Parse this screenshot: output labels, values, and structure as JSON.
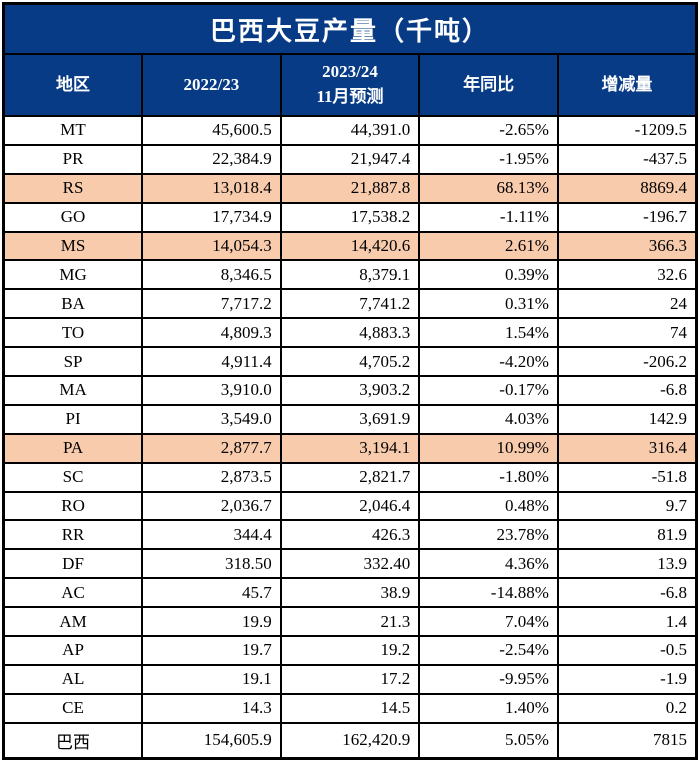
{
  "title": "巴西大豆产量（千吨）",
  "columns": [
    {
      "label": "地区"
    },
    {
      "label": "2022/23"
    },
    {
      "label_line1": "2023/24",
      "label_line2": "11月预测"
    },
    {
      "label": "年同比"
    },
    {
      "label": "增减量"
    }
  ],
  "colors": {
    "header_bg": "#083B85",
    "header_text": "#FFFFFF",
    "highlight_bg": "#F8CBAD",
    "border": "#000000",
    "body_text": "#000000"
  },
  "rows": [
    {
      "cells": [
        "MT",
        "45,600.5",
        "44,391.0",
        "-2.65%",
        "-1209.5"
      ],
      "highlight": false
    },
    {
      "cells": [
        "PR",
        "22,384.9",
        "21,947.4",
        "-1.95%",
        "-437.5"
      ],
      "highlight": false
    },
    {
      "cells": [
        "RS",
        "13,018.4",
        "21,887.8",
        "68.13%",
        "8869.4"
      ],
      "highlight": true
    },
    {
      "cells": [
        "GO",
        "17,734.9",
        "17,538.2",
        "-1.11%",
        "-196.7"
      ],
      "highlight": false
    },
    {
      "cells": [
        "MS",
        "14,054.3",
        "14,420.6",
        "2.61%",
        "366.3"
      ],
      "highlight": true
    },
    {
      "cells": [
        "MG",
        "8,346.5",
        "8,379.1",
        "0.39%",
        "32.6"
      ],
      "highlight": false
    },
    {
      "cells": [
        "BA",
        "7,717.2",
        "7,741.2",
        "0.31%",
        "24"
      ],
      "highlight": false
    },
    {
      "cells": [
        "TO",
        "4,809.3",
        "4,883.3",
        "1.54%",
        "74"
      ],
      "highlight": false
    },
    {
      "cells": [
        "SP",
        "4,911.4",
        "4,705.2",
        "-4.20%",
        "-206.2"
      ],
      "highlight": false
    },
    {
      "cells": [
        "MA",
        "3,910.0",
        "3,903.2",
        "-0.17%",
        "-6.8"
      ],
      "highlight": false
    },
    {
      "cells": [
        "PI",
        "3,549.0",
        "3,691.9",
        "4.03%",
        "142.9"
      ],
      "highlight": false
    },
    {
      "cells": [
        "PA",
        "2,877.7",
        "3,194.1",
        "10.99%",
        "316.4"
      ],
      "highlight": true
    },
    {
      "cells": [
        "SC",
        "2,873.5",
        "2,821.7",
        "-1.80%",
        "-51.8"
      ],
      "highlight": false
    },
    {
      "cells": [
        "RO",
        "2,036.7",
        "2,046.4",
        "0.48%",
        "9.7"
      ],
      "highlight": false
    },
    {
      "cells": [
        "RR",
        "344.4",
        "426.3",
        "23.78%",
        "81.9"
      ],
      "highlight": false
    },
    {
      "cells": [
        "DF",
        "318.50",
        "332.40",
        "4.36%",
        "13.9"
      ],
      "highlight": false
    },
    {
      "cells": [
        "AC",
        "45.7",
        "38.9",
        "-14.88%",
        "-6.8"
      ],
      "highlight": false
    },
    {
      "cells": [
        "AM",
        "19.9",
        "21.3",
        "7.04%",
        "1.4"
      ],
      "highlight": false
    },
    {
      "cells": [
        "AP",
        "19.7",
        "19.2",
        "-2.54%",
        "-0.5"
      ],
      "highlight": false
    },
    {
      "cells": [
        "AL",
        "19.1",
        "17.2",
        "-9.95%",
        "-1.9"
      ],
      "highlight": false
    },
    {
      "cells": [
        "CE",
        "14.3",
        "14.5",
        "1.40%",
        "0.2"
      ],
      "highlight": false
    },
    {
      "cells": [
        "巴西",
        "154,605.9",
        "162,420.9",
        "5.05%",
        "7815"
      ],
      "highlight": false,
      "is_total": true
    }
  ],
  "chart_data": {
    "type": "table",
    "title": "巴西大豆产量（千吨）",
    "columns": [
      "地区",
      "2022/23",
      "2023/24 11月预测",
      "年同比",
      "增减量"
    ],
    "rows": [
      [
        "MT",
        45600.5,
        44391.0,
        "-2.65%",
        -1209.5
      ],
      [
        "PR",
        22384.9,
        21947.4,
        "-1.95%",
        -437.5
      ],
      [
        "RS",
        13018.4,
        21887.8,
        "68.13%",
        8869.4
      ],
      [
        "GO",
        17734.9,
        17538.2,
        "-1.11%",
        -196.7
      ],
      [
        "MS",
        14054.3,
        14420.6,
        "2.61%",
        366.3
      ],
      [
        "MG",
        8346.5,
        8379.1,
        "0.39%",
        32.6
      ],
      [
        "BA",
        7717.2,
        7741.2,
        "0.31%",
        24
      ],
      [
        "TO",
        4809.3,
        4883.3,
        "1.54%",
        74
      ],
      [
        "SP",
        4911.4,
        4705.2,
        "-4.20%",
        -206.2
      ],
      [
        "MA",
        3910.0,
        3903.2,
        "-0.17%",
        -6.8
      ],
      [
        "PI",
        3549.0,
        3691.9,
        "4.03%",
        142.9
      ],
      [
        "PA",
        2877.7,
        3194.1,
        "10.99%",
        316.4
      ],
      [
        "SC",
        2873.5,
        2821.7,
        "-1.80%",
        -51.8
      ],
      [
        "RO",
        2036.7,
        2046.4,
        "0.48%",
        9.7
      ],
      [
        "RR",
        344.4,
        426.3,
        "23.78%",
        81.9
      ],
      [
        "DF",
        318.5,
        332.4,
        "4.36%",
        13.9
      ],
      [
        "AC",
        45.7,
        38.9,
        "-14.88%",
        -6.8
      ],
      [
        "AM",
        19.9,
        21.3,
        "7.04%",
        1.4
      ],
      [
        "AP",
        19.7,
        19.2,
        "-2.54%",
        -0.5
      ],
      [
        "AL",
        19.1,
        17.2,
        "-9.95%",
        -1.9
      ],
      [
        "CE",
        14.3,
        14.5,
        "1.40%",
        0.2
      ],
      [
        "巴西",
        154605.9,
        162420.9,
        "5.05%",
        7815
      ]
    ],
    "highlighted_rows": [
      "RS",
      "MS",
      "PA"
    ]
  }
}
